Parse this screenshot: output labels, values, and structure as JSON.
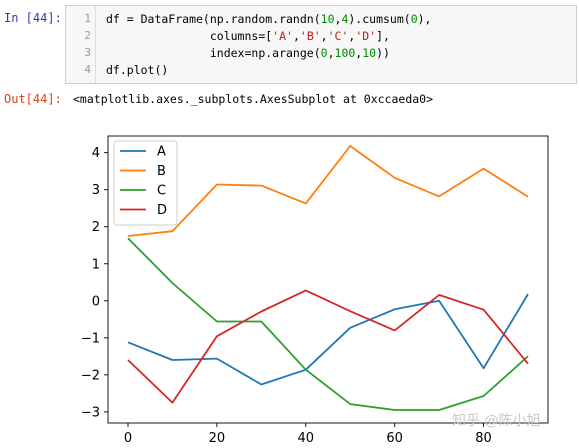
{
  "input_cell": {
    "prompt": "In [44]:",
    "lines": [
      {
        "number": "1",
        "parts": [
          [
            "df = DataFrame(np.random.randn(",
            ""
          ],
          [
            "10",
            "num"
          ],
          [
            ",",
            ""
          ],
          [
            "4",
            "num"
          ],
          [
            ").cumsum(",
            ""
          ],
          [
            "0",
            "num"
          ],
          [
            "),",
            ""
          ]
        ]
      },
      {
        "number": "2",
        "parts": [
          [
            "               columns=[",
            ""
          ],
          [
            "'A'",
            "str"
          ],
          [
            ",",
            ""
          ],
          [
            "'B'",
            "str"
          ],
          [
            ",",
            ""
          ],
          [
            "'C'",
            "str"
          ],
          [
            ",",
            ""
          ],
          [
            "'D'",
            "str"
          ],
          [
            "],",
            ""
          ]
        ]
      },
      {
        "number": "3",
        "parts": [
          [
            "               index=np.arange(",
            ""
          ],
          [
            "0",
            "num"
          ],
          [
            ",",
            ""
          ],
          [
            "100",
            "num"
          ],
          [
            ",",
            ""
          ],
          [
            "10",
            "num"
          ],
          [
            "))",
            ""
          ]
        ]
      },
      {
        "number": "4",
        "parts": [
          [
            "df.plot()",
            ""
          ]
        ]
      }
    ]
  },
  "output_cell": {
    "prompt": "Out[44]:",
    "text": "<matplotlib.axes._subplots.AxesSubplot at 0xccaeda0>"
  },
  "watermark": "知乎 @陈小旭",
  "chart_data": {
    "type": "line",
    "x": [
      0,
      10,
      20,
      30,
      40,
      50,
      60,
      70,
      80,
      90
    ],
    "xticks": [
      0,
      20,
      40,
      60,
      80
    ],
    "xtick_labels": [
      "0",
      "20",
      "40",
      "60",
      "80"
    ],
    "xlim": [
      -4.5,
      94.5
    ],
    "yticks": [
      4,
      3,
      2,
      1,
      0,
      -1,
      -2,
      -3
    ],
    "ytick_labels": [
      "4",
      "3",
      "2",
      "1",
      "0",
      "−1",
      "−2",
      "−3"
    ],
    "ylim": [
      -3.3,
      4.45
    ],
    "legend_position": "upper-left",
    "series": [
      {
        "name": "A",
        "color": "#1f77b4",
        "values": [
          -1.12,
          -1.6,
          -1.56,
          -2.26,
          -1.86,
          -0.73,
          -0.23,
          0.0,
          -1.82,
          0.18
        ]
      },
      {
        "name": "B",
        "color": "#ff7f0e",
        "values": [
          1.75,
          1.88,
          3.14,
          3.11,
          2.63,
          4.18,
          3.32,
          2.82,
          3.57,
          2.81
        ]
      },
      {
        "name": "C",
        "color": "#2ca02c",
        "values": [
          1.69,
          0.48,
          -0.56,
          -0.56,
          -1.86,
          -2.79,
          -2.95,
          -2.95,
          -2.57,
          -1.5
        ]
      },
      {
        "name": "D",
        "color": "#d62728",
        "values": [
          -1.6,
          -2.75,
          -0.96,
          -0.29,
          0.28,
          -0.28,
          -0.8,
          0.16,
          -0.24,
          -1.7
        ]
      }
    ]
  }
}
